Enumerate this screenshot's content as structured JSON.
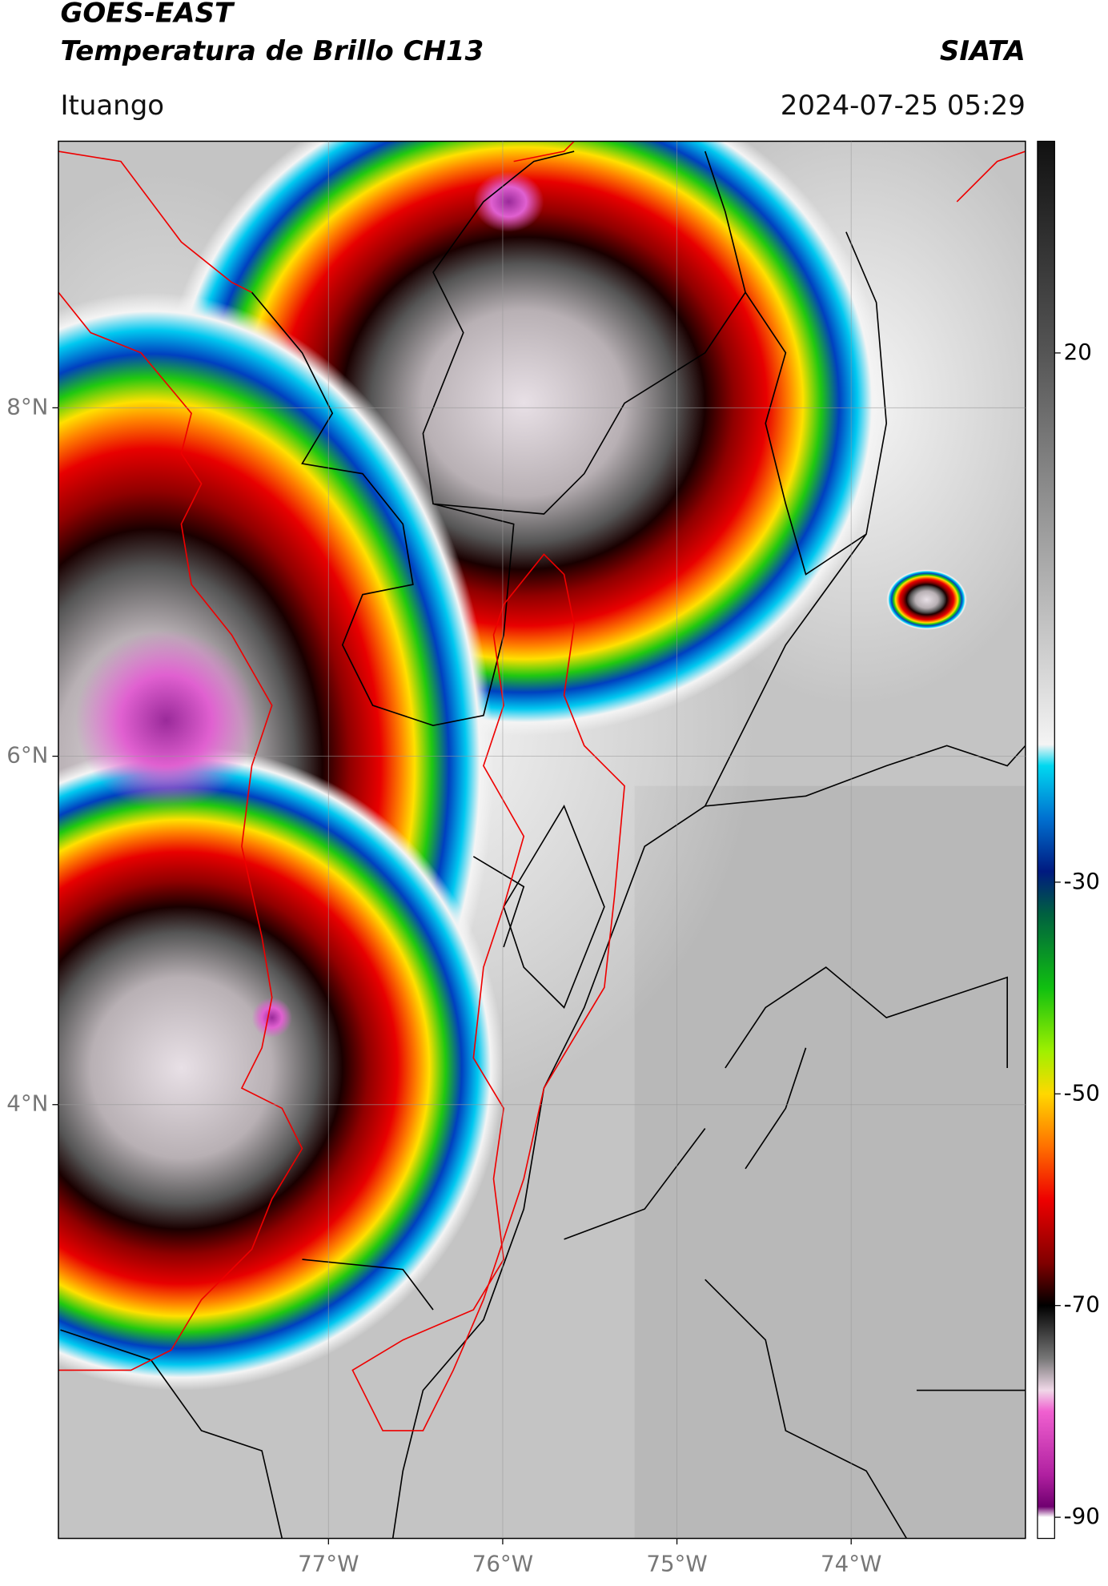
{
  "header": {
    "title": "GOES-EAST",
    "subtitle": "Temperatura de Brillo CH13",
    "source": "SIATA",
    "region": "Ituango",
    "timestamp": "2024-07-25 05:29"
  },
  "map": {
    "xlim": [
      -78.55,
      -73.0
    ],
    "ylim": [
      1.51,
      9.53
    ],
    "xticks": [
      {
        "value": -77,
        "label": "77°W"
      },
      {
        "value": -76,
        "label": "76°W"
      },
      {
        "value": -75,
        "label": "75°W"
      },
      {
        "value": -74,
        "label": "74°W"
      }
    ],
    "yticks": [
      {
        "value": 4,
        "label": "4°N"
      },
      {
        "value": 6,
        "label": "6°N"
      },
      {
        "value": 8,
        "label": "8°N"
      }
    ],
    "grid": true
  },
  "colorbar": {
    "clim": [
      -92,
      40
    ],
    "ticks": [
      20,
      -30,
      -50,
      -70,
      -90
    ],
    "colormap": [
      {
        "value": 40,
        "color": "#111111"
      },
      {
        "value": 20,
        "color": "#555555"
      },
      {
        "value": 0,
        "color": "#aaaaaa"
      },
      {
        "value": -17,
        "color": "#f4f4f4"
      },
      {
        "value": -19,
        "color": "#00d8f0"
      },
      {
        "value": -24,
        "color": "#0070d0"
      },
      {
        "value": -29,
        "color": "#001a80"
      },
      {
        "value": -33,
        "color": "#006040"
      },
      {
        "value": -40,
        "color": "#10c010"
      },
      {
        "value": -46,
        "color": "#a0f000"
      },
      {
        "value": -50,
        "color": "#ffd800"
      },
      {
        "value": -55,
        "color": "#ff7000"
      },
      {
        "value": -60,
        "color": "#ee0000"
      },
      {
        "value": -66,
        "color": "#800000"
      },
      {
        "value": -70,
        "color": "#000000"
      },
      {
        "value": -75,
        "color": "#777777"
      },
      {
        "value": -78,
        "color": "#f0d8e8"
      },
      {
        "value": -80,
        "color": "#f060d0"
      },
      {
        "value": -86,
        "color": "#b020a0"
      },
      {
        "value": -89,
        "color": "#700070"
      },
      {
        "value": -90,
        "color": "#ffffff"
      }
    ]
  }
}
